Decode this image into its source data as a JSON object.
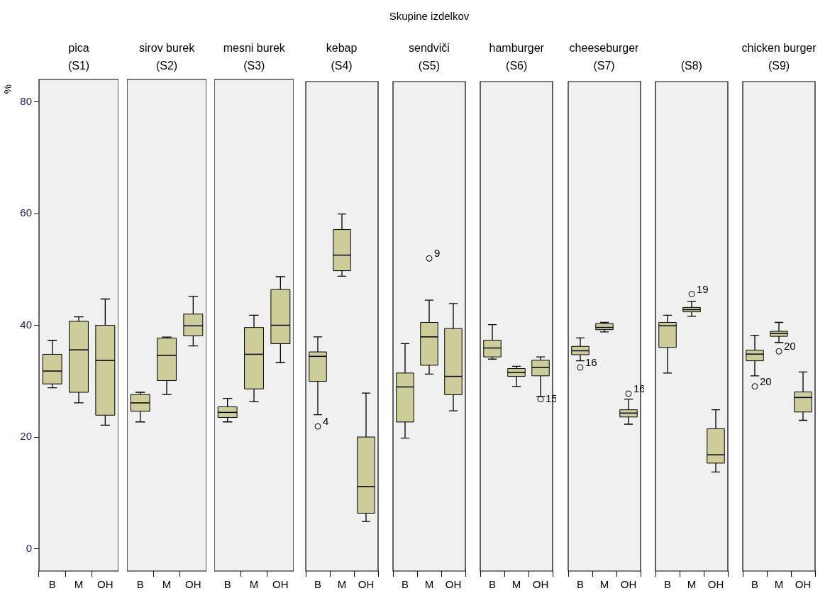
{
  "chart_data": [
    {
      "type": "box",
      "title": "pica",
      "subtitle": "(S1)",
      "ylabel": "%",
      "annotations": [
        "Skupine izdelkov"
      ],
      "categories": [
        "B",
        "M",
        "OH"
      ],
      "color": "#cdcd99",
      "ylim": [
        -4,
        84
      ],
      "yticks": [
        0,
        20,
        40,
        60,
        80
      ],
      "boxes": [
        {
          "low": 28.8,
          "q1": 29.5,
          "median": 31.8,
          "q3": 34.8,
          "high": 37.3
        },
        {
          "low": 26.1,
          "q1": 28.0,
          "median": 35.6,
          "q3": 40.7,
          "high": 41.5
        },
        {
          "low": 22.1,
          "q1": 23.9,
          "median": 33.7,
          "q3": 40.0,
          "high": 44.7
        }
      ]
    },
    {
      "type": "box",
      "title": "sirov burek",
      "subtitle": "(S2)",
      "categories": [
        "B",
        "M",
        "OH"
      ],
      "color": "#cdcd99",
      "ylim": [
        -4,
        84
      ],
      "tick_labels": "x",
      "boxes": [
        {
          "low": 22.7,
          "q1": 24.6,
          "median": 26.1,
          "q3": 27.6,
          "high": 28.0
        },
        {
          "low": 27.6,
          "q1": 30.1,
          "median": 34.6,
          "q3": 37.7,
          "high": 37.9
        },
        {
          "low": 36.3,
          "q1": 38.1,
          "median": 39.9,
          "q3": 42.0,
          "high": 45.2
        }
      ]
    },
    {
      "type": "box",
      "title": "mesni burek",
      "subtitle": "(S3)",
      "categories": [
        "B",
        "M",
        "OH"
      ],
      "color": "#cdcd99",
      "ylim": [
        -4,
        84
      ],
      "tick_labels": "x",
      "boxes": [
        {
          "low": 22.7,
          "q1": 23.5,
          "median": 24.4,
          "q3": 25.4,
          "high": 26.9
        },
        {
          "low": 26.3,
          "q1": 28.6,
          "median": 34.8,
          "q3": 39.6,
          "high": 41.8
        },
        {
          "low": 33.3,
          "q1": 36.7,
          "median": 40.0,
          "q3": 46.4,
          "high": 48.7
        }
      ]
    },
    {
      "type": "box",
      "title": "kebap",
      "subtitle": "(S4)",
      "categories": [
        "B",
        "M",
        "OH"
      ],
      "color": "#cdcd99",
      "ylim": [
        -4,
        84
      ],
      "tick_labels": "x",
      "boxes": [
        {
          "low": 24.1,
          "q1": 30.1,
          "median": 34.6,
          "q3": 35.4,
          "high": 38.1,
          "outliers": [
            22.0
          ]
        },
        {
          "low": 49.0,
          "q1": 50.0,
          "median": 52.8,
          "q3": 57.4,
          "high": 60.2
        },
        {
          "low": 4.9,
          "q1": 6.4,
          "median": 11.2,
          "q3": 20.1,
          "high": 28.0
        }
      ],
      "annotations": [
        "4"
      ]
    },
    {
      "type": "box",
      "title": "sendviči",
      "subtitle": "(S5)",
      "categories": [
        "B",
        "M",
        "OH"
      ],
      "color": "#cdcd99",
      "ylim": [
        -4,
        84
      ],
      "tick_labels": "x",
      "boxes": [
        {
          "low": 19.9,
          "q1": 22.8,
          "median": 29.1,
          "q3": 31.6,
          "high": 36.9
        },
        {
          "low": 31.4,
          "q1": 33.0,
          "median": 38.1,
          "q3": 40.7,
          "high": 44.7,
          "outliers": [
            52.2
          ]
        },
        {
          "low": 24.8,
          "q1": 27.7,
          "median": 31.0,
          "q3": 39.6,
          "high": 44.1
        }
      ],
      "annotations": [
        "9"
      ]
    },
    {
      "type": "box",
      "title": "hamburger",
      "subtitle": "(S6)",
      "categories": [
        "B",
        "M",
        "OH"
      ],
      "color": "#cdcd99",
      "ylim": [
        -4,
        84
      ],
      "tick_labels": "x",
      "boxes": [
        {
          "low": 34.1,
          "q1": 34.5,
          "median": 36.1,
          "q3": 37.5,
          "high": 40.3
        },
        {
          "low": 29.2,
          "q1": 31.0,
          "median": 31.7,
          "q3": 32.4,
          "high": 32.8
        },
        {
          "low": 27.4,
          "q1": 31.1,
          "median": 32.6,
          "q3": 33.9,
          "high": 34.5,
          "outliers": [
            26.9
          ]
        }
      ],
      "annotations": [
        {
          "text": "15",
          "x": "OH",
          "y": 26.9
        }
      ]
    },
    {
      "type": "box",
      "title": "cheeseburger",
      "subtitle": "(S7)",
      "categories": [
        "B",
        "M",
        "OH"
      ],
      "color": "#cdcd99",
      "ylim": [
        -4,
        84
      ],
      "tick_labels": "x",
      "boxes": [
        {
          "low": 33.8,
          "q1": 34.9,
          "median": 35.6,
          "q3": 36.4,
          "high": 37.9,
          "outliers": [
            32.6
          ]
        },
        {
          "low": 39.0,
          "q1": 39.4,
          "median": 39.8,
          "q3": 40.5,
          "high": 40.7
        },
        {
          "low": 22.4,
          "q1": 23.7,
          "median": 24.4,
          "q3": 25.0,
          "high": 26.9,
          "outliers": [
            27.9
          ]
        }
      ],
      "annotations": [
        "16",
        "16"
      ]
    },
    {
      "type": "box",
      "subtitle": "(S8)",
      "categories": [
        "B",
        "M",
        "OH"
      ],
      "color": "#cdcd99",
      "ylim": [
        -4,
        84
      ],
      "tick_labels": "x",
      "boxes": [
        {
          "low": 31.6,
          "q1": 36.2,
          "median": 40.1,
          "q3": 40.7,
          "high": 42.0
        },
        {
          "low": 41.8,
          "q1": 42.6,
          "median": 43.0,
          "q3": 43.4,
          "high": 44.5,
          "outliers": [
            45.8
          ]
        },
        {
          "low": 13.8,
          "q1": 15.4,
          "median": 16.9,
          "q3": 21.6,
          "high": 25.0
        }
      ],
      "annotations": [
        "19"
      ]
    },
    {
      "type": "box",
      "title": "chicken burger",
      "subtitle": "(S9)",
      "categories": [
        "B",
        "M",
        "OH"
      ],
      "color": "#cdcd99",
      "ylim": [
        -4,
        84
      ],
      "tick_labels": "x",
      "boxes": [
        {
          "low": 31.1,
          "q1": 33.8,
          "median": 35.0,
          "q3": 35.7,
          "high": 38.4,
          "outliers": [
            29.2
          ]
        },
        {
          "low": 37.1,
          "q1": 38.2,
          "median": 38.7,
          "q3": 39.1,
          "high": 40.7,
          "outliers": [
            35.5
          ]
        },
        {
          "low": 23.1,
          "q1": 24.6,
          "median": 27.2,
          "q3": 28.2,
          "high": 31.8
        }
      ],
      "annotations": [
        "20",
        "20"
      ]
    }
  ]
}
